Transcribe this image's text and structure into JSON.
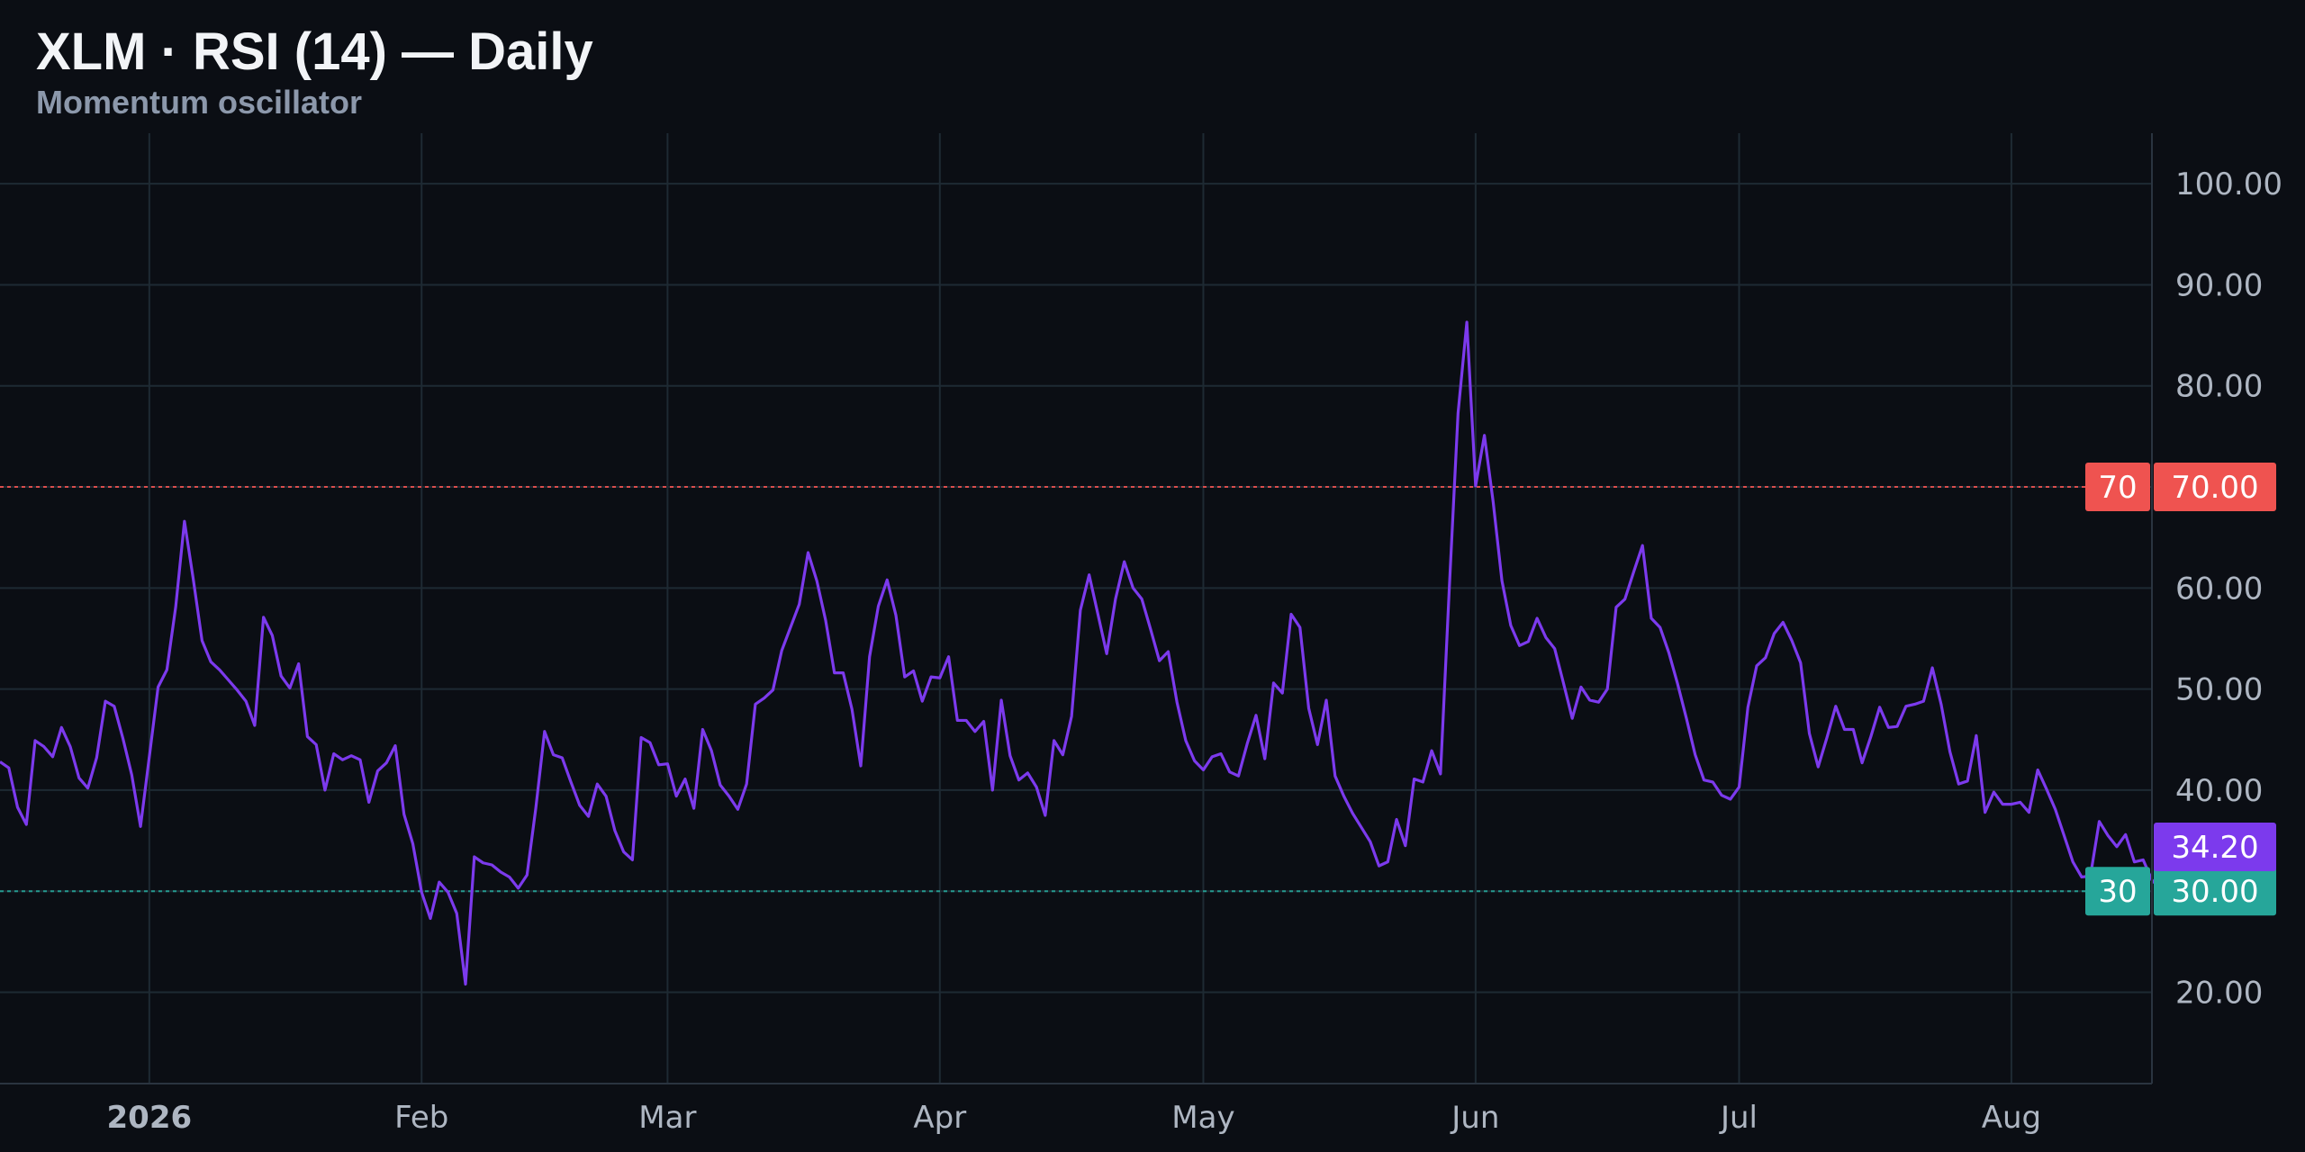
{
  "header": {
    "title": "XLM · RSI (14) — Daily",
    "subtitle": "Momentum oscillator"
  },
  "colors": {
    "background": "#0b0e14",
    "grid": "#1e2a33",
    "rsi_line": "#7c3aed",
    "overbought": "#ef5350",
    "oversold": "#26a69a",
    "axis_text": "#aeb6c2"
  },
  "chart_data": {
    "type": "line",
    "title": "XLM · RSI (14) — Daily",
    "subtitle": "Momentum oscillator",
    "xlabel": "",
    "ylabel": "",
    "ylim": [
      10.96,
      105
    ],
    "xlim": [
      "2025-12-15",
      "2026-08-17"
    ],
    "grid": true,
    "y_ticks": [
      "20.00",
      "30.00",
      "40.00",
      "50.00",
      "60.00",
      "70.00",
      "80.00",
      "90.00",
      "100.00"
    ],
    "x_ticks": [
      {
        "label": "2026",
        "date": "2026-01-01",
        "bold": true
      },
      {
        "label": "Feb",
        "date": "2026-02-01"
      },
      {
        "label": "Mar",
        "date": "2026-03-01"
      },
      {
        "label": "Apr",
        "date": "2026-04-01"
      },
      {
        "label": "May",
        "date": "2026-05-01"
      },
      {
        "label": "Jun",
        "date": "2026-06-01"
      },
      {
        "label": "Jul",
        "date": "2026-07-01"
      },
      {
        "label": "Aug",
        "date": "2026-08-01"
      }
    ],
    "reference_lines": [
      {
        "value": 70,
        "label": "70",
        "value_label": "70.00",
        "color": "#ef5350"
      },
      {
        "value": 30,
        "label": "30",
        "value_label": "30.00",
        "color": "#26a69a"
      }
    ],
    "last_value": {
      "value": 34.2,
      "label": "34.20"
    },
    "series": [
      {
        "x_start": "2025-12-15",
        "x_step_days": 1,
        "values": [
          42.8,
          42.2,
          38.3,
          36.6,
          44.9,
          44.3,
          43.3,
          46.2,
          44.3,
          41.2,
          40.2,
          43.2,
          48.8,
          48.3,
          45.1,
          41.5,
          36.4,
          43.3,
          50.2,
          51.9,
          58.1,
          66.6,
          60.9,
          54.8,
          52.7,
          51.9,
          50.9,
          49.9,
          48.8,
          46.4,
          57.1,
          55.3,
          51.3,
          50.1,
          52.5,
          45.3,
          44.5,
          40.0,
          43.6,
          43.0,
          43.4,
          43.0,
          38.8,
          41.9,
          42.7,
          44.4,
          37.6,
          34.7,
          29.9,
          27.3,
          30.9,
          29.9,
          27.8,
          20.8,
          33.4,
          32.8,
          32.6,
          31.9,
          31.4,
          30.3,
          31.6,
          38.2,
          45.8,
          43.5,
          43.2,
          40.8,
          38.5,
          37.4,
          40.6,
          39.4,
          36.0,
          33.9,
          33.1,
          45.2,
          44.7,
          42.5,
          42.6,
          39.4,
          41.1,
          38.2,
          46.0,
          43.9,
          40.5,
          39.4,
          38.1,
          40.6,
          48.5,
          49.1,
          49.9,
          53.8,
          56.1,
          58.4,
          63.5,
          60.7,
          56.8,
          51.6,
          51.6,
          48.0,
          42.4,
          53.2,
          58.2,
          60.8,
          57.3,
          51.2,
          51.8,
          48.8,
          51.2,
          51.1,
          53.2,
          46.9,
          46.9,
          45.8,
          46.8,
          40.0,
          48.9,
          43.4,
          41.0,
          41.7,
          40.3,
          37.5,
          44.9,
          43.5,
          47.3,
          57.8,
          61.3,
          57.4,
          53.5,
          58.9,
          62.6,
          60.0,
          58.9,
          55.9,
          52.8,
          53.7,
          48.7,
          44.9,
          42.9,
          42.0,
          43.3,
          43.6,
          41.8,
          41.4,
          44.6,
          47.4,
          43.1,
          50.6,
          49.6,
          57.4,
          56.1,
          48.1,
          44.5,
          48.9,
          41.4,
          39.4,
          37.7,
          36.3,
          34.9,
          32.5,
          32.9,
          37.1,
          34.5,
          41.1,
          40.8,
          43.9,
          41.6,
          59.9,
          77.3,
          86.3,
          70.1,
          75.1,
          68.5,
          60.7,
          56.3,
          54.3,
          54.7,
          57.0,
          55.1,
          54.0,
          50.6,
          47.1,
          50.2,
          48.9,
          48.7,
          50.0,
          58.1,
          58.9,
          61.6,
          64.2,
          57.0,
          56.1,
          53.6,
          50.5,
          47.1,
          43.5,
          41.0,
          40.8,
          39.5,
          39.1,
          40.3,
          48.2,
          52.3,
          53.1,
          55.5,
          56.6,
          54.8,
          52.6,
          45.6,
          42.3,
          45.2,
          48.3,
          46.0,
          46.0,
          42.7,
          45.3,
          48.2,
          46.2,
          46.3,
          48.3,
          48.5,
          48.8,
          52.1,
          48.5,
          43.8,
          40.6,
          40.9,
          45.4,
          37.8,
          39.8,
          38.6,
          38.6,
          38.8,
          37.8,
          42.0,
          40.1,
          38.1,
          35.5,
          32.9,
          31.4,
          31.5,
          36.9,
          35.5,
          34.4,
          35.6,
          32.9,
          33.1,
          31.1,
          30.2,
          34.2
        ]
      }
    ]
  }
}
